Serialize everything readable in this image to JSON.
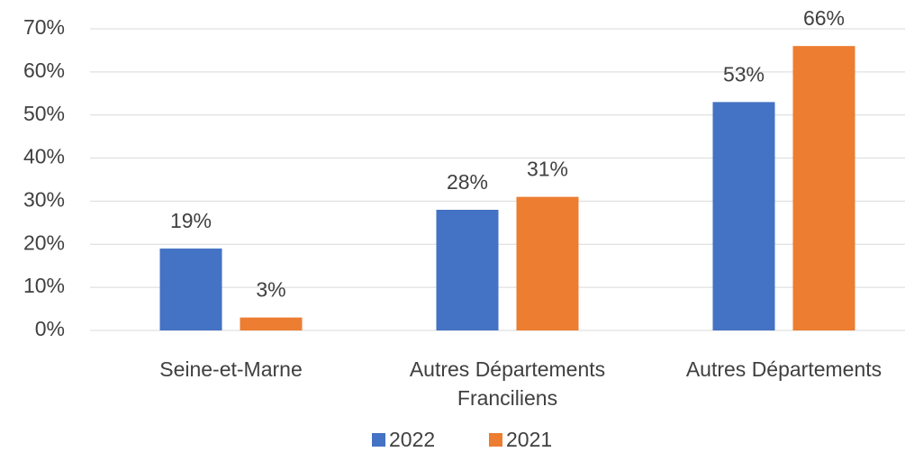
{
  "chart_data": {
    "type": "bar",
    "categories": [
      "Seine-et-Marne",
      "Autres Départements Franciliens",
      "Autres Départements"
    ],
    "series": [
      {
        "name": "2022",
        "color": "#4472c4",
        "values": [
          19,
          28,
          53
        ],
        "value_labels": [
          "19%",
          "28%",
          "53%"
        ]
      },
      {
        "name": "2021",
        "color": "#ed7d31",
        "values": [
          3,
          31,
          66
        ],
        "value_labels": [
          "3%",
          "31%",
          "66%"
        ]
      }
    ],
    "ylim": [
      0,
      70
    ],
    "yticks": [
      {
        "value": 0,
        "label": "0%"
      },
      {
        "value": 10,
        "label": "10%"
      },
      {
        "value": 20,
        "label": "20%"
      },
      {
        "value": 30,
        "label": "30%"
      },
      {
        "value": 40,
        "label": "40%"
      },
      {
        "value": 50,
        "label": "50%"
      },
      {
        "value": 60,
        "label": "60%"
      },
      {
        "value": 70,
        "label": "70%"
      }
    ],
    "grid": true,
    "legend": "bottom"
  }
}
